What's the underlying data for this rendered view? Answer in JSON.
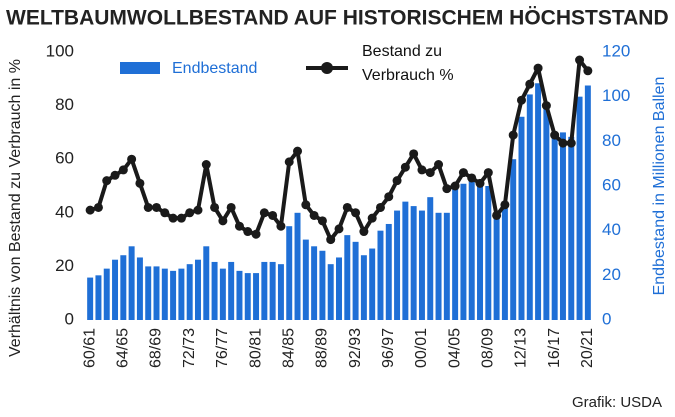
{
  "chart_data": {
    "type": "bar",
    "title": "WELTBAUMWOLLBESTAND AUF HISTORISCHEM HÖCHSTSTAND",
    "source": "Grafik: USDA",
    "y_label": "Verhältnis von Bestand zu Verbrauch in %",
    "y2_label": "Endbestand in Millionen Ballen",
    "categories": [
      "60/61",
      null,
      null,
      null,
      "64/65",
      null,
      null,
      null,
      "68/69",
      null,
      null,
      null,
      "72/73",
      null,
      null,
      null,
      "76/77",
      null,
      null,
      null,
      "80/81",
      null,
      null,
      null,
      "84/85",
      null,
      null,
      null,
      "88/89",
      null,
      null,
      null,
      "92/93",
      null,
      null,
      null,
      "96/97",
      null,
      null,
      null,
      "00/01",
      null,
      null,
      null,
      "04/05",
      null,
      null,
      null,
      "08/09",
      null,
      null,
      null,
      "12/13",
      null,
      null,
      null,
      "16/17",
      null,
      null,
      null,
      "20/21"
    ],
    "series": [
      {
        "name": "Endbestand",
        "type": "bar",
        "axis": "y2",
        "color": "#1f6fd6",
        "values": [
          19,
          20,
          23,
          27,
          29,
          33,
          28,
          24,
          24,
          23,
          22,
          23,
          25,
          27,
          33,
          26,
          23,
          26,
          22,
          21,
          21,
          26,
          26,
          25,
          42,
          48,
          36,
          33,
          31,
          25,
          28,
          38,
          35,
          29,
          32,
          40,
          43,
          49,
          53,
          51,
          49,
          55,
          48,
          48,
          60,
          61,
          62,
          60,
          60,
          46,
          50,
          72,
          91,
          101,
          106,
          96,
          82,
          84,
          82,
          100,
          105
        ]
      },
      {
        "name": "Bestand zu Verbrauch %",
        "type": "line",
        "axis": "y",
        "color": "#1a1a1a",
        "values": [
          41,
          42,
          52,
          54,
          56,
          60,
          51,
          42,
          42,
          40,
          38,
          38,
          40,
          41,
          58,
          42,
          37,
          42,
          35,
          33,
          32,
          40,
          39,
          35,
          59,
          63,
          43,
          39,
          37,
          30,
          34,
          42,
          40,
          33,
          38,
          42,
          46,
          52,
          57,
          62,
          56,
          55,
          58,
          49,
          50,
          55,
          53,
          51,
          55,
          39,
          43,
          69,
          82,
          88,
          94,
          80,
          69,
          66,
          66,
          97,
          93
        ]
      }
    ],
    "ylim": [
      0,
      100
    ],
    "yticks": [
      0,
      20,
      40,
      60,
      80,
      100
    ],
    "y2lim": [
      0,
      120
    ],
    "y2ticks": [
      0,
      20,
      40,
      60,
      80,
      100,
      120
    ],
    "grid": false
  }
}
